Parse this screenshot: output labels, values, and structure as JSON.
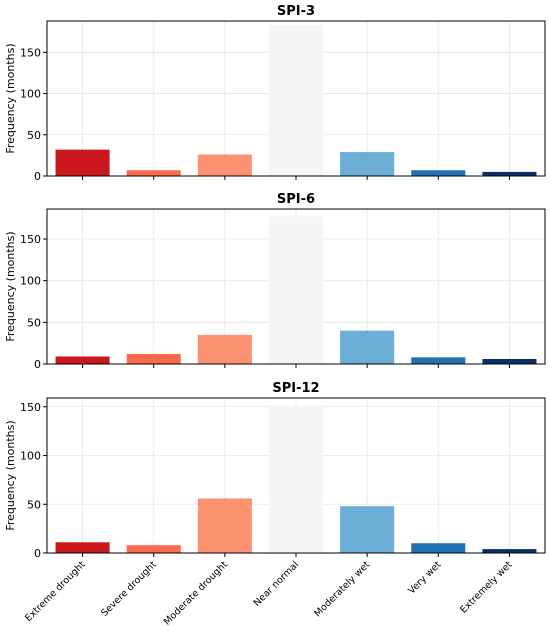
{
  "chart_data": [
    {
      "type": "bar",
      "title": "SPI-3",
      "ylabel": "Frequency (months)",
      "ylim": [
        0,
        188
      ],
      "yticks": [
        0,
        50,
        100,
        150
      ],
      "categories": [
        "Extreme drought",
        "Severe drought",
        "Moderate drought",
        "Near normal",
        "Moderately wet",
        "Very wet",
        "Extremely wet"
      ],
      "values": [
        32,
        7,
        26,
        183,
        29,
        7,
        5
      ],
      "colors": [
        "#cb181d",
        "#fb6a4a",
        "#fc9272",
        "#f5f5f5",
        "#6baed6",
        "#2171b5",
        "#08306b"
      ],
      "grid": true
    },
    {
      "type": "bar",
      "title": "SPI-6",
      "ylabel": "Frequency (months)",
      "ylim": [
        0,
        186
      ],
      "yticks": [
        0,
        50,
        100,
        150
      ],
      "categories": [
        "Extreme drought",
        "Severe drought",
        "Moderate drought",
        "Near normal",
        "Moderately wet",
        "Very wet",
        "Extremely wet"
      ],
      "values": [
        9,
        12,
        35,
        177,
        40,
        8,
        6
      ],
      "colors": [
        "#cb181d",
        "#fb6a4a",
        "#fc9272",
        "#f5f5f5",
        "#6baed6",
        "#2171b5",
        "#08306b"
      ],
      "grid": true
    },
    {
      "type": "bar",
      "title": "SPI-12",
      "ylabel": "Frequency (months)",
      "ylim": [
        0,
        159
      ],
      "yticks": [
        0,
        50,
        100,
        150
      ],
      "categories": [
        "Extreme drought",
        "Severe drought",
        "Moderate drought",
        "Near normal",
        "Moderately wet",
        "Very wet",
        "Extremely wet"
      ],
      "values": [
        11,
        8,
        56,
        152,
        48,
        10,
        4
      ],
      "colors": [
        "#cb181d",
        "#fb6a4a",
        "#fc9272",
        "#f5f5f5",
        "#6baed6",
        "#2171b5",
        "#08306b"
      ],
      "grid": true
    }
  ]
}
